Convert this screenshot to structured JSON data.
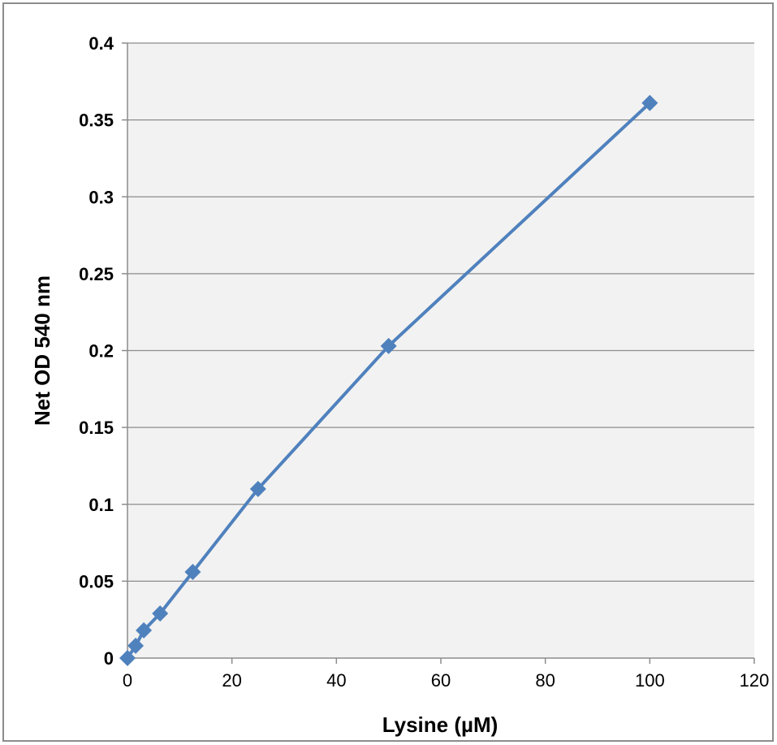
{
  "chart_data": {
    "type": "line",
    "title": "",
    "xlabel": "Lysine (µM)",
    "ylabel": "Net OD 540 nm",
    "xlim": [
      0,
      120
    ],
    "ylim": [
      0,
      0.4
    ],
    "x_ticks": [
      0,
      20,
      40,
      60,
      80,
      100,
      120
    ],
    "y_ticks": [
      0,
      0.05,
      0.1,
      0.15,
      0.2,
      0.25,
      0.3,
      0.35,
      0.4
    ],
    "x_tick_labels": [
      "0",
      "20",
      "40",
      "60",
      "80",
      "100",
      "120"
    ],
    "y_tick_labels": [
      "0",
      "0.05",
      "0.1",
      "0.15",
      "0.2",
      "0.25",
      "0.3",
      "0.35",
      "0.4"
    ],
    "grid": "horizontal",
    "legend": "none",
    "series": [
      {
        "x": [
          0,
          1.5625,
          3.125,
          6.25,
          12.5,
          25,
          50,
          100
        ],
        "y": [
          0.0,
          0.008,
          0.018,
          0.029,
          0.056,
          0.11,
          0.203,
          0.361
        ],
        "marker": "diamond",
        "color": "#4f81bd"
      }
    ],
    "colors": {
      "series": "#4f81bd",
      "plot_background": "#f2f2f2",
      "gridline": "#8c8c8c",
      "axis": "#8c8c8c"
    }
  }
}
